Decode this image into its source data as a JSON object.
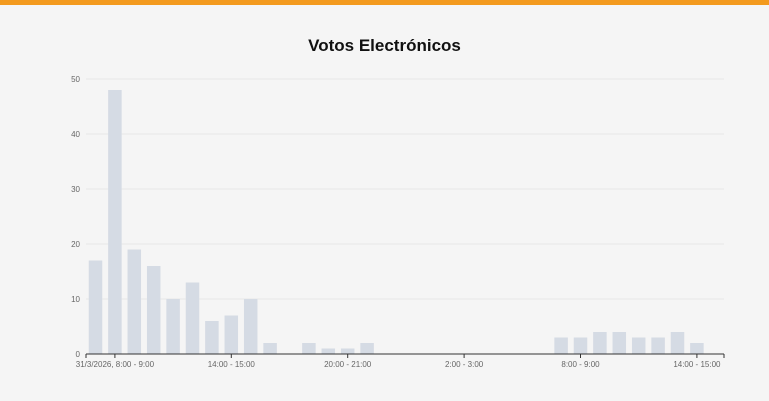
{
  "colors": {
    "accent_bar": "#f39a1e",
    "bar": "#d5dbe4",
    "grid": "#e8e8e8",
    "axis": "#333333"
  },
  "chart_data": {
    "type": "bar",
    "title": "Votos Electrónicos",
    "xlabel": "",
    "ylabel": "",
    "ylim": [
      0,
      50
    ],
    "yticks": [
      0,
      10,
      20,
      30,
      40,
      50
    ],
    "grid": true,
    "legend": "none",
    "x_tick_labels": [
      "31/3/2026, 8:00 - 9:00",
      "14:00 - 15:00",
      "20:00 - 21:00",
      "2:00 - 3:00",
      "8:00 - 9:00",
      "14:00 - 15:00"
    ],
    "x_tick_slots": [
      1,
      7,
      13,
      19,
      25,
      31
    ],
    "values": [
      17,
      48,
      19,
      16,
      10,
      13,
      6,
      7,
      10,
      2,
      0,
      2,
      1,
      1,
      2,
      0,
      0,
      0,
      0,
      0,
      0,
      0,
      0,
      0,
      3,
      3,
      4,
      4,
      3,
      3,
      4,
      2
    ]
  }
}
